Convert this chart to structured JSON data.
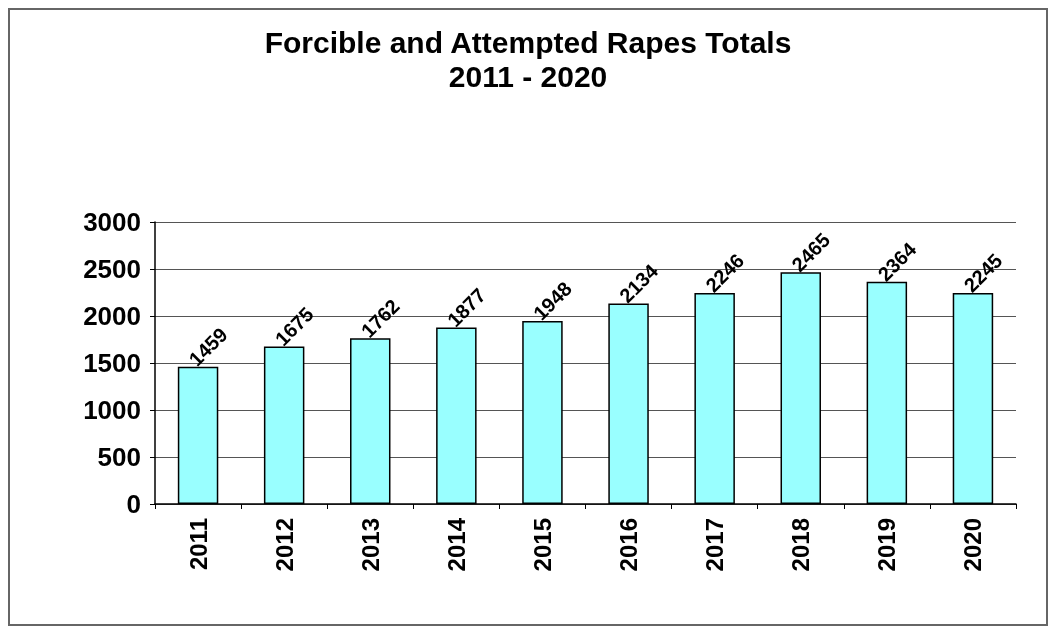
{
  "chart_data": {
    "type": "bar",
    "title": "Forcible and Attempted Rapes Totals",
    "subtitle": "2011 - 2020",
    "categories": [
      "2011",
      "2012",
      "2013",
      "2014",
      "2015",
      "2016",
      "2017",
      "2018",
      "2019",
      "2020"
    ],
    "values": [
      1459,
      1675,
      1762,
      1877,
      1948,
      2134,
      2246,
      2465,
      2364,
      2245
    ],
    "color": "#99ffff",
    "ylim": [
      0,
      3000
    ],
    "yticks": [
      0,
      500,
      1000,
      1500,
      2000,
      2500,
      3000
    ],
    "grid": "y",
    "data_labels": true
  }
}
